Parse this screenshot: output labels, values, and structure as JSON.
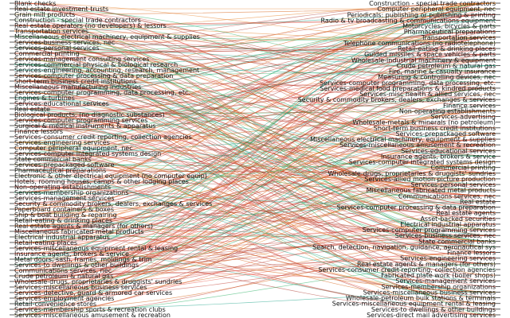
{
  "left_labels": [
    "Blank checks",
    "Real estate investment trusts",
    "Grain mill products",
    "Construction - special trade contractors",
    "Real estate operators (no developers) & lessors",
    "Transportation services",
    "Miscellaneous electrical machinery, equipment & supplies",
    "Services-business services, nec",
    "Services-personal services",
    "Commercial printing",
    "Services-management consulting services",
    "Services-commercial physical & biological research",
    "Services-engineering, accounting, research, management",
    "Services-computer processing & data preparation",
    "Short-term business credit institutions",
    "Miscellaneous manufacturing industries",
    "Services-computer programming, data processing, etc.",
    "Engines & turbines",
    "Services-educational services",
    "Real estate",
    "Biological products, (no diagnostic substances)",
    "Services-computer programming services",
    "Surgical & medical instruments & apparatus",
    "Finance lessors",
    "Services-consumer credit reporting, collection agencies",
    "Services-engineering services",
    "Computer peripheral equipment, nec",
    "Services-computer integrated systems design",
    "State commercial banks",
    "Services-prepackaged software",
    "Pharmaceutical preparations",
    "Electronic & other electrical equipment (no computer equip)",
    "Hotels, rooming houses, camps & other lodging places",
    "Non-operating establishments",
    "Services-membership organizations",
    "Services-management services",
    "Security & commodity brokers, dealers, exchanges & services",
    "Paperboard containers & boxes",
    "Ship & boat building & repairing",
    "Retail-eating & drinking places",
    "Real estate agents & managers (for others)",
    "Miscellaneous fabricated metal products",
    "Electrical industrial apparatus",
    "Retail-eating places",
    "Services-miscellaneous equipment rental & leasing",
    "Insurance agents, brokers & service",
    "Metal doors, sash, frames, moldings & trim",
    "Services-to dwellings & other buildings",
    "Communications services, nec",
    "Crude petroleum & natural gas",
    "Wholesale-drugs, proprietaries & druggists' sundries",
    "Services-miscellaneous business services",
    "Services-detective, guard & armored car services",
    "Services-employment agencies",
    "Retail-convenience stores",
    "Services-membership sports & recreation clubs",
    "Services-miscellaneous amusement & recreation"
  ],
  "right_labels": [
    "Construction - special trade contractors",
    "Computer peripheral equipment, nec",
    "Periodicals: publishing or publishing & printing",
    "Radio & tv broadcasting & communications equipment",
    "Motorcycles, bicycles & parts",
    "Pharmaceutical preparations",
    "Transportation services",
    "Telephone communications (no radiotelephone)",
    "Retail-eating & drinking places",
    "Guided missiles & space vehicles & parts",
    "Wholesale-industrial machinery & equipment",
    "Crude petroleum & natural gas",
    "Fire, marine & casualty insurance",
    "Measuring & controlling devices, nec",
    "Services-computer programming, data processing, etc.",
    "Services-medical food preparations & kindred products",
    "Services-misc health & allied services, nec",
    "Security & commodity brokers, dealers, exchanges & services",
    "Finance services",
    "Non-operating establishments",
    "Services-advertising",
    "Wholesale-metals & minerals (no petroleum)",
    "Short-term business credit institutions",
    "Services-prepackaged software",
    "Miscellaneous electrical machinery, equipment & supplies",
    "Services-miscellaneous amusement & recreation",
    "Services-educational services",
    "Insurance agents, brokers & service",
    "Services-computer integrated systems design",
    "Commercial printing",
    "Wholesale-drugs, proprietaries & druggists' sundries",
    "Services-allied motion picture production",
    "Services-personal services",
    "Miscellaneous fabricated metal products",
    "Communications services, nec",
    "Real estate",
    "Services-computer processing & data preparation",
    "Real estate agents",
    "Asset-backed securities",
    "Electrical industrial apparatus",
    "Services-computer programming services",
    "Services-business services, nec",
    "State commercial banks",
    "Search, detection, navigation, guidance, aeronautical sys",
    "Finance lessors",
    "Services-engineering services",
    "Real estate agents & managers (for others)",
    "Services-consumer credit reporting, collection agencies",
    "Fabricated plate work (boiler shops)",
    "Services-management services",
    "Services-membership organizations",
    "Services-miscellaneous business services",
    "Wholesale-petroleum bulk stations & terminals",
    "Services-miscellaneous equipment rental & leasing",
    "Services-to dwellings & other buildings",
    "Services-direct mail advertising services"
  ],
  "link_colors": [
    "#c0392b",
    "#e74c3c",
    "#d35400",
    "#a93226",
    "#27ae60",
    "#16a085",
    "#e67e22",
    "#b03a2e"
  ]
}
